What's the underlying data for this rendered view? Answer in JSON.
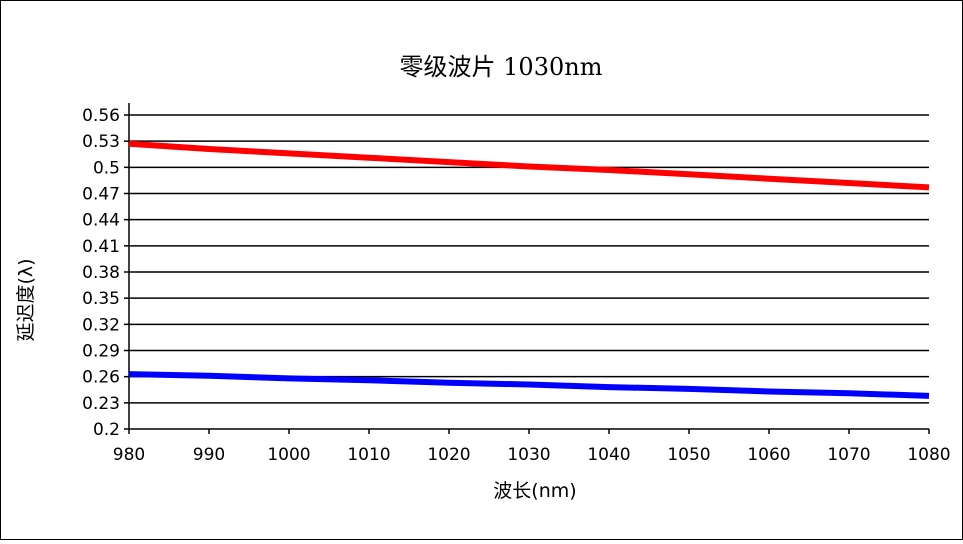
{
  "chart_data": {
    "type": "line",
    "title": "零级波片 1030nm",
    "xlabel": "波长(nm)",
    "ylabel": "延迟度(λ)",
    "xlim": [
      980,
      1080
    ],
    "ylim": [
      0.2,
      0.56
    ],
    "xticks": [
      980,
      990,
      1000,
      1010,
      1020,
      1030,
      1040,
      1050,
      1060,
      1070,
      1080
    ],
    "yticks": [
      0.2,
      0.23,
      0.26,
      0.29,
      0.32,
      0.35,
      0.38,
      0.41,
      0.44,
      0.47,
      0.5,
      0.53,
      0.56
    ],
    "ytick_labels": [
      "0.2",
      "0.23",
      "0.26",
      "0.29",
      "0.32",
      "0.35",
      "0.38",
      "0.41",
      "0.44",
      "0.47",
      "0.5",
      "0.53",
      "0.56"
    ],
    "grid": "horizontal",
    "legend": "none",
    "series": [
      {
        "color": "#ff0000",
        "x": [
          980,
          990,
          1000,
          1010,
          1020,
          1030,
          1040,
          1050,
          1060,
          1070,
          1080
        ],
        "y": [
          0.527,
          0.521,
          0.516,
          0.511,
          0.506,
          0.501,
          0.497,
          0.492,
          0.487,
          0.482,
          0.477
        ]
      },
      {
        "color": "#0000ff",
        "x": [
          980,
          990,
          1000,
          1010,
          1020,
          1030,
          1040,
          1050,
          1060,
          1070,
          1080
        ],
        "y": [
          0.263,
          0.261,
          0.258,
          0.256,
          0.253,
          0.251,
          0.248,
          0.246,
          0.243,
          0.241,
          0.238
        ]
      }
    ]
  }
}
